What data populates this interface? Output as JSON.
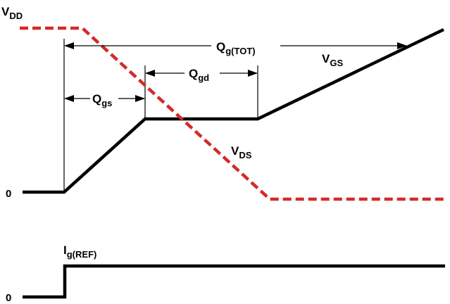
{
  "colors": {
    "vgs_trace": "#000000",
    "vds_trace": "#d42a2a",
    "ig_trace": "#000000",
    "annotation": "#000000"
  },
  "labels": {
    "vdd": {
      "main": "V",
      "sub": "DD"
    },
    "qg_tot": {
      "main": "Q",
      "sub": "g(TOT)"
    },
    "qgd": {
      "main": "Q",
      "sub": "gd"
    },
    "qgs": {
      "main": "Q",
      "sub": "gs"
    },
    "vgs": {
      "main": "V",
      "sub": "GS"
    },
    "vds": {
      "main": "V",
      "sub": "DS"
    },
    "ig_ref": {
      "main": "I",
      "sub": "g(REF)"
    },
    "zero_top": "0",
    "zero_bottom": "0"
  },
  "legend": {
    "vgs": {
      "style": "solid"
    },
    "vds": {
      "style": "dashed"
    },
    "ig": {
      "style": "solid"
    }
  }
}
